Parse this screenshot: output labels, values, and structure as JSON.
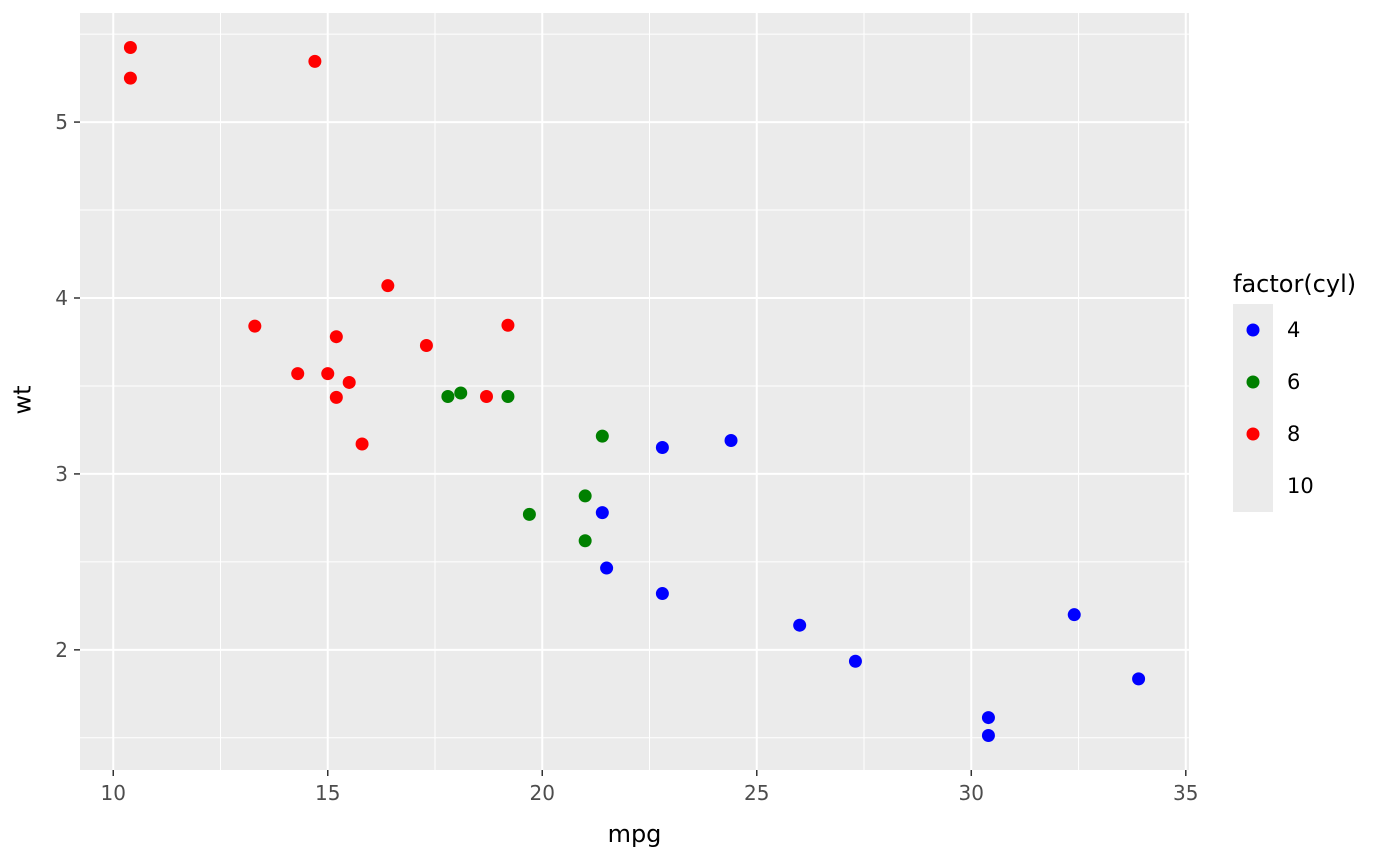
{
  "chart_data": {
    "type": "scatter",
    "title": "",
    "xlabel": "mpg",
    "ylabel": "wt",
    "x_ticks": [
      10,
      15,
      20,
      25,
      30,
      35
    ],
    "y_ticks": [
      2,
      3,
      4,
      5
    ],
    "x_minor_ticks": [
      12.5,
      17.5,
      22.5,
      27.5,
      32.5
    ],
    "y_minor_ticks": [
      1.5,
      2.5,
      3.5,
      4.5,
      5.5
    ],
    "xlim": [
      9.225,
      35.075
    ],
    "ylim": [
      1.317,
      5.62
    ],
    "grid": true,
    "panel_bg": "#EBEBEB",
    "grid_color": "#FFFFFF",
    "tick_color": "#333333",
    "tick_label_color": "#4D4D4D",
    "axis_title_color": "#000000",
    "legend_key_bg": "#EBEBEB",
    "point_radius": 6.5,
    "legend": {
      "title": "factor(cyl)",
      "position": "right",
      "entries": [
        {
          "label": "4",
          "color": "#0000FF"
        },
        {
          "label": "6",
          "color": "#008000"
        },
        {
          "label": "8",
          "color": "#FF0000"
        },
        {
          "label": "10",
          "color": null
        }
      ]
    },
    "series": [
      {
        "name": "4",
        "color": "#0000FF",
        "points": [
          [
            22.8,
            2.32
          ],
          [
            24.4,
            3.19
          ],
          [
            22.8,
            3.15
          ],
          [
            32.4,
            2.2
          ],
          [
            30.4,
            1.615
          ],
          [
            33.9,
            1.835
          ],
          [
            21.5,
            2.465
          ],
          [
            27.3,
            1.935
          ],
          [
            26.0,
            2.14
          ],
          [
            30.4,
            1.513
          ],
          [
            21.4,
            2.78
          ]
        ]
      },
      {
        "name": "6",
        "color": "#008000",
        "points": [
          [
            21.0,
            2.62
          ],
          [
            21.0,
            2.875
          ],
          [
            21.4,
            3.215
          ],
          [
            18.1,
            3.46
          ],
          [
            19.2,
            3.44
          ],
          [
            17.8,
            3.44
          ],
          [
            19.7,
            2.77
          ]
        ]
      },
      {
        "name": "8",
        "color": "#FF0000",
        "points": [
          [
            18.7,
            3.44
          ],
          [
            14.3,
            3.57
          ],
          [
            16.4,
            4.07
          ],
          [
            17.3,
            3.73
          ],
          [
            15.2,
            3.78
          ],
          [
            10.4,
            5.25
          ],
          [
            10.4,
            5.424
          ],
          [
            14.7,
            5.345
          ],
          [
            15.5,
            3.52
          ],
          [
            15.2,
            3.435
          ],
          [
            13.3,
            3.84
          ],
          [
            19.2,
            3.845
          ],
          [
            15.8,
            3.17
          ],
          [
            15.0,
            3.57
          ]
        ]
      }
    ]
  }
}
